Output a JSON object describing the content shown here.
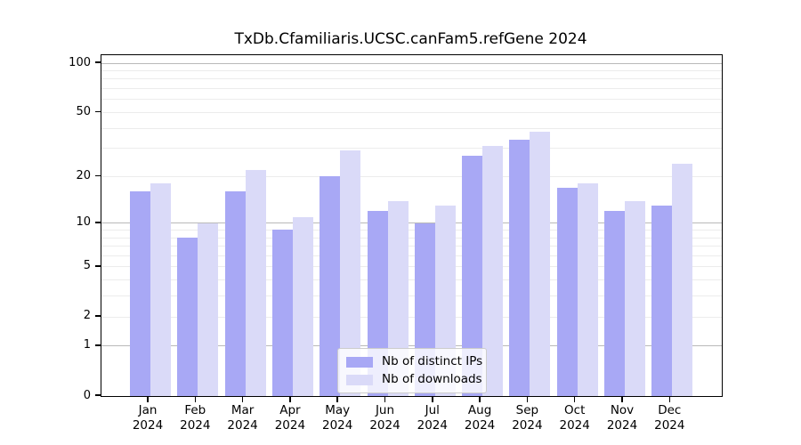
{
  "title": "TxDb.Cfamiliaris.UCSC.canFam5.refGene 2024",
  "chart_data": {
    "type": "bar",
    "title": "TxDb.Cfamiliaris.UCSC.canFam5.refGene 2024",
    "categories": [
      "Jan",
      "Feb",
      "Mar",
      "Apr",
      "May",
      "Jun",
      "Jul",
      "Aug",
      "Sep",
      "Oct",
      "Nov",
      "Dec"
    ],
    "category_year": "2024",
    "series": [
      {
        "name": "Nb of distinct IPs",
        "color": "#a8a8f5",
        "values": [
          16,
          8,
          16,
          9,
          20,
          12,
          10,
          27,
          34,
          17,
          12,
          13
        ]
      },
      {
        "name": "Nb of downloads",
        "color": "#dadaf8",
        "values": [
          18,
          10,
          22,
          11,
          29,
          14,
          13,
          31,
          38,
          18,
          14,
          24
        ]
      }
    ],
    "yscale": "log1p",
    "ylim": [
      0,
      112
    ],
    "yticks": [
      0,
      1,
      2,
      5,
      10,
      20,
      50,
      100
    ],
    "gridlines_minor": [
      2,
      3,
      4,
      5,
      6,
      7,
      8,
      9,
      20,
      30,
      40,
      50,
      60,
      70,
      80,
      90
    ],
    "gridlines_major": [
      1,
      10,
      100
    ],
    "grid": true,
    "legend_position": "bottom-center",
    "xlabel": "",
    "ylabel": ""
  }
}
